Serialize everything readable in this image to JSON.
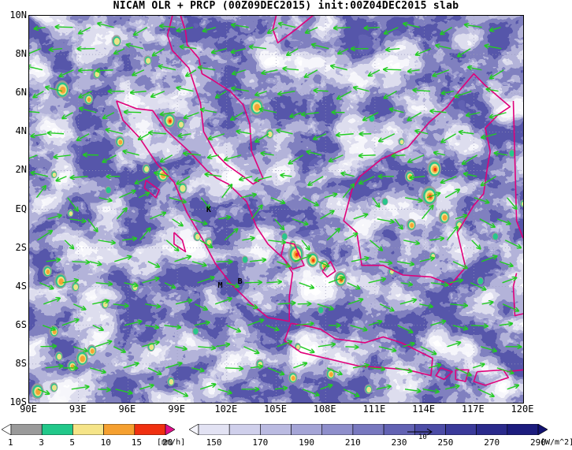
{
  "title": "NICAM OLR + PRCP (00Z09DEC2015) init:00Z04DEC2015 slab",
  "map": {
    "lon_range": [
      90,
      120
    ],
    "lat_range": [
      -10,
      10
    ],
    "y_ticks": [
      "10N",
      "8N",
      "6N",
      "4N",
      "2N",
      "EQ",
      "2S",
      "4S",
      "6S",
      "8S",
      "10S"
    ],
    "x_ticks": [
      "90E",
      "93E",
      "96E",
      "99E",
      "102E",
      "105E",
      "108E",
      "111E",
      "114E",
      "117E",
      "120E"
    ],
    "grid": "dotted",
    "coastline_color": "#e0007a",
    "wind_vector_color": "#22cc22",
    "stations": [
      {
        "label": "K",
        "lon": 101.0,
        "lat": -0.1
      },
      {
        "label": "M",
        "lon": 101.7,
        "lat": -4.0
      },
      {
        "label": "B",
        "lon": 102.9,
        "lat": -3.8
      }
    ]
  },
  "precip_colorbar": {
    "labels": [
      "1",
      "3",
      "5",
      "10",
      "15",
      "20"
    ],
    "unit": "[mm/h]",
    "colors": [
      "#ffffff",
      "#9a9a9a",
      "#22c88a",
      "#f5e488",
      "#f5a030",
      "#f03010",
      "#e0108a"
    ]
  },
  "olr_colorbar": {
    "labels": [
      "150",
      "170",
      "190",
      "210",
      "230",
      "250",
      "270",
      "290"
    ],
    "unit": "[W/m^2]",
    "colors": [
      "#f4f4fb",
      "#e2e2f3",
      "#cfcfeb",
      "#babae1",
      "#a4a4d6",
      "#8e8ecb",
      "#7878bf",
      "#6262b3",
      "#4c4ca6",
      "#3a3a9a",
      "#2a2a8c",
      "#1c1c7e",
      "#121270"
    ]
  },
  "reference_vector": "10"
}
